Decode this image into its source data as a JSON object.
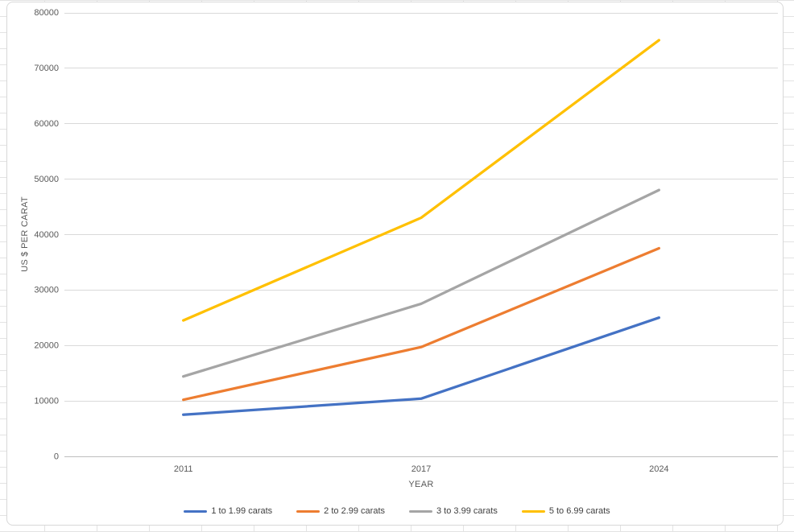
{
  "chart_data": {
    "type": "line",
    "title": "",
    "xlabel": "YEAR",
    "ylabel": "US $ PER CARAT",
    "categories": [
      "2011",
      "2017",
      "2024"
    ],
    "series": [
      {
        "name": "1 to 1.99 carats",
        "color": "#4472C4",
        "values": [
          7500,
          10400,
          25000
        ]
      },
      {
        "name": "2 to 2.99 carats",
        "color": "#ED7D31",
        "values": [
          10200,
          19700,
          37500
        ]
      },
      {
        "name": "3 to 3.99 carats",
        "color": "#A5A5A5",
        "values": [
          14400,
          27500,
          48000
        ]
      },
      {
        "name": "5 to 6.99 carats",
        "color": "#FFC000",
        "values": [
          24500,
          43000,
          75000
        ]
      }
    ],
    "ylim": [
      0,
      80000
    ],
    "ytick_step": 10000,
    "yticks": [
      0,
      10000,
      20000,
      30000,
      40000,
      50000,
      60000,
      70000,
      80000
    ],
    "grid": true,
    "legend_position": "bottom",
    "legend": [
      "1 to 1.99 carats",
      "2 to 2.99 carats",
      "3 to 3.99 carats",
      "5 to 6.99 carats"
    ]
  },
  "styles": {
    "gridline_color": "#d9d9d9",
    "axis_line_color": "#bfbfbf",
    "tick_label_color": "#595959",
    "legend_text_color": "#404040",
    "chart_background": "#ffffff",
    "chart_border_color": "#d8d8d8",
    "sheet_gridline_color": "#e3e3e3"
  }
}
